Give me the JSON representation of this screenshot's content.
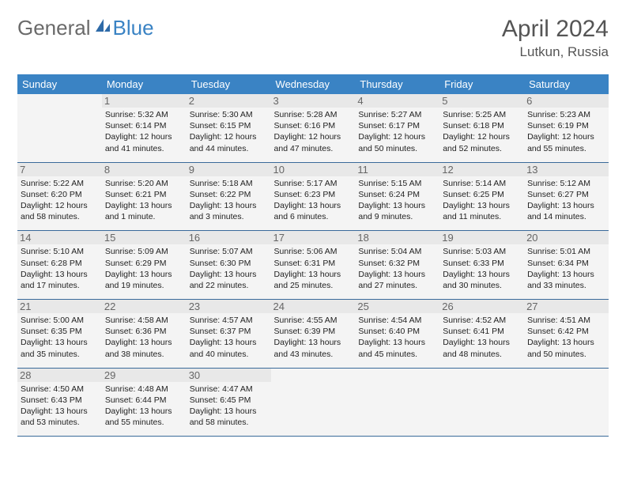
{
  "logo": {
    "general": "General",
    "blue": "Blue"
  },
  "title": "April 2024",
  "location": "Lutkun, Russia",
  "colors": {
    "header_bg": "#3a83c4",
    "header_text": "#ffffff",
    "border": "#3a6a9a",
    "cell_bg": "#f4f4f4",
    "daynum_bg": "#e8e8e8",
    "text": "#222222",
    "logo_gray": "#6a6a6a",
    "logo_blue": "#3a83c4"
  },
  "day_headers": [
    "Sunday",
    "Monday",
    "Tuesday",
    "Wednesday",
    "Thursday",
    "Friday",
    "Saturday"
  ],
  "days": [
    {
      "date": "1",
      "sunrise": "5:32 AM",
      "sunset": "6:14 PM",
      "daylight": "12 hours and 41 minutes."
    },
    {
      "date": "2",
      "sunrise": "5:30 AM",
      "sunset": "6:15 PM",
      "daylight": "12 hours and 44 minutes."
    },
    {
      "date": "3",
      "sunrise": "5:28 AM",
      "sunset": "6:16 PM",
      "daylight": "12 hours and 47 minutes."
    },
    {
      "date": "4",
      "sunrise": "5:27 AM",
      "sunset": "6:17 PM",
      "daylight": "12 hours and 50 minutes."
    },
    {
      "date": "5",
      "sunrise": "5:25 AM",
      "sunset": "6:18 PM",
      "daylight": "12 hours and 52 minutes."
    },
    {
      "date": "6",
      "sunrise": "5:23 AM",
      "sunset": "6:19 PM",
      "daylight": "12 hours and 55 minutes."
    },
    {
      "date": "7",
      "sunrise": "5:22 AM",
      "sunset": "6:20 PM",
      "daylight": "12 hours and 58 minutes."
    },
    {
      "date": "8",
      "sunrise": "5:20 AM",
      "sunset": "6:21 PM",
      "daylight": "13 hours and 1 minute."
    },
    {
      "date": "9",
      "sunrise": "5:18 AM",
      "sunset": "6:22 PM",
      "daylight": "13 hours and 3 minutes."
    },
    {
      "date": "10",
      "sunrise": "5:17 AM",
      "sunset": "6:23 PM",
      "daylight": "13 hours and 6 minutes."
    },
    {
      "date": "11",
      "sunrise": "5:15 AM",
      "sunset": "6:24 PM",
      "daylight": "13 hours and 9 minutes."
    },
    {
      "date": "12",
      "sunrise": "5:14 AM",
      "sunset": "6:25 PM",
      "daylight": "13 hours and 11 minutes."
    },
    {
      "date": "13",
      "sunrise": "5:12 AM",
      "sunset": "6:27 PM",
      "daylight": "13 hours and 14 minutes."
    },
    {
      "date": "14",
      "sunrise": "5:10 AM",
      "sunset": "6:28 PM",
      "daylight": "13 hours and 17 minutes."
    },
    {
      "date": "15",
      "sunrise": "5:09 AM",
      "sunset": "6:29 PM",
      "daylight": "13 hours and 19 minutes."
    },
    {
      "date": "16",
      "sunrise": "5:07 AM",
      "sunset": "6:30 PM",
      "daylight": "13 hours and 22 minutes."
    },
    {
      "date": "17",
      "sunrise": "5:06 AM",
      "sunset": "6:31 PM",
      "daylight": "13 hours and 25 minutes."
    },
    {
      "date": "18",
      "sunrise": "5:04 AM",
      "sunset": "6:32 PM",
      "daylight": "13 hours and 27 minutes."
    },
    {
      "date": "19",
      "sunrise": "5:03 AM",
      "sunset": "6:33 PM",
      "daylight": "13 hours and 30 minutes."
    },
    {
      "date": "20",
      "sunrise": "5:01 AM",
      "sunset": "6:34 PM",
      "daylight": "13 hours and 33 minutes."
    },
    {
      "date": "21",
      "sunrise": "5:00 AM",
      "sunset": "6:35 PM",
      "daylight": "13 hours and 35 minutes."
    },
    {
      "date": "22",
      "sunrise": "4:58 AM",
      "sunset": "6:36 PM",
      "daylight": "13 hours and 38 minutes."
    },
    {
      "date": "23",
      "sunrise": "4:57 AM",
      "sunset": "6:37 PM",
      "daylight": "13 hours and 40 minutes."
    },
    {
      "date": "24",
      "sunrise": "4:55 AM",
      "sunset": "6:39 PM",
      "daylight": "13 hours and 43 minutes."
    },
    {
      "date": "25",
      "sunrise": "4:54 AM",
      "sunset": "6:40 PM",
      "daylight": "13 hours and 45 minutes."
    },
    {
      "date": "26",
      "sunrise": "4:52 AM",
      "sunset": "6:41 PM",
      "daylight": "13 hours and 48 minutes."
    },
    {
      "date": "27",
      "sunrise": "4:51 AM",
      "sunset": "6:42 PM",
      "daylight": "13 hours and 50 minutes."
    },
    {
      "date": "28",
      "sunrise": "4:50 AM",
      "sunset": "6:43 PM",
      "daylight": "13 hours and 53 minutes."
    },
    {
      "date": "29",
      "sunrise": "4:48 AM",
      "sunset": "6:44 PM",
      "daylight": "13 hours and 55 minutes."
    },
    {
      "date": "30",
      "sunrise": "4:47 AM",
      "sunset": "6:45 PM",
      "daylight": "13 hours and 58 minutes."
    }
  ],
  "labels": {
    "sunrise": "Sunrise:",
    "sunset": "Sunset:",
    "daylight": "Daylight:"
  },
  "first_day_offset": 1,
  "total_cells": 35
}
